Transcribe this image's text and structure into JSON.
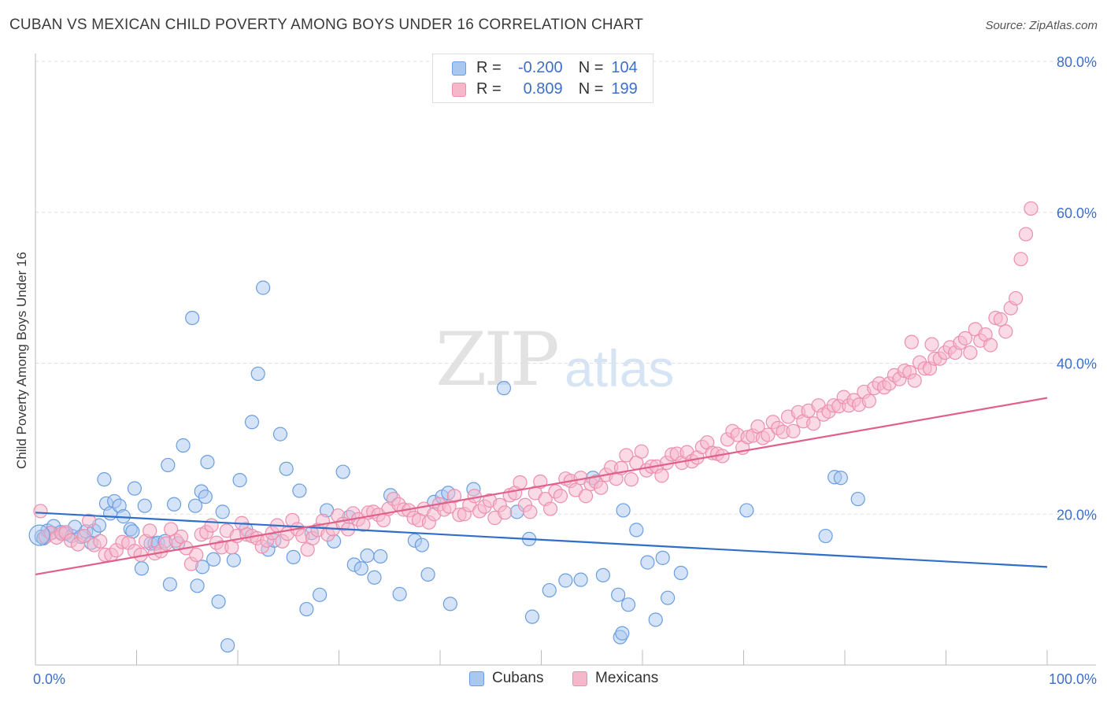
{
  "title": "CUBAN VS MEXICAN CHILD POVERTY AMONG BOYS UNDER 16 CORRELATION CHART",
  "source": "Source: ZipAtlas.com",
  "watermark": {
    "zip": "ZIP",
    "atlas": "atlas"
  },
  "legend_top": {
    "rows": [
      {
        "r_label": "R =",
        "r_value": "-0.200",
        "n_label": "N =",
        "n_value": "104"
      },
      {
        "r_label": "R =",
        "r_value": "0.809",
        "n_label": "N =",
        "n_value": "199"
      }
    ]
  },
  "legend_bottom": {
    "cubans": "Cubans",
    "mexicans": "Mexicans"
  },
  "colors": {
    "cubans_fill": "#a9c8ef",
    "cubans_stroke": "#6a9ee0",
    "cubans_line": "#2f6fca",
    "mexicans_fill": "#f5b8cb",
    "mexicans_stroke": "#ec8fad",
    "mexicans_line": "#e0608a",
    "tick_label": "#3d6fc9",
    "grid": "#dddddd"
  },
  "chart_data": {
    "type": "scatter",
    "title": "CUBAN VS MEXICAN CHILD POVERTY AMONG BOYS UNDER 16 CORRELATION CHART",
    "xlabel": "",
    "ylabel": "Child Poverty Among Boys Under 16",
    "xlim": [
      0,
      100
    ],
    "ylim": [
      0,
      80
    ],
    "x_tick_labels": [
      "0.0%",
      "100.0%"
    ],
    "y_ticks": [
      20,
      40,
      60,
      80
    ],
    "y_tick_labels": [
      "20.0%",
      "40.0%",
      "60.0%",
      "80.0%"
    ],
    "grid": "horizontal dashed",
    "legend_placement": "top-center",
    "series": [
      {
        "name": "Cubans",
        "R": -0.2,
        "N": 104,
        "trend": {
          "x": [
            0,
            100
          ],
          "y": [
            20.2,
            13.0
          ]
        },
        "points": [
          [
            0.6,
            17.0
          ],
          [
            0.8,
            16.8
          ],
          [
            1.2,
            17.8
          ],
          [
            1.6,
            17.5
          ],
          [
            1.8,
            18.4
          ],
          [
            2.5,
            17.6
          ],
          [
            3.0,
            17.4
          ],
          [
            3.6,
            17.1
          ],
          [
            3.9,
            18.3
          ],
          [
            4.5,
            17.0
          ],
          [
            5.0,
            17.7
          ],
          [
            5.5,
            16.2
          ],
          [
            5.8,
            17.8
          ],
          [
            6.3,
            18.5
          ],
          [
            7.0,
            21.4
          ],
          [
            6.8,
            24.6
          ],
          [
            7.4,
            20.1
          ],
          [
            7.8,
            21.7
          ],
          [
            8.3,
            21.1
          ],
          [
            8.7,
            19.7
          ],
          [
            9.4,
            18.0
          ],
          [
            9.6,
            17.7
          ],
          [
            9.8,
            23.4
          ],
          [
            10.5,
            12.8
          ],
          [
            10.8,
            21.1
          ],
          [
            11.4,
            16.1
          ],
          [
            11.8,
            16.1
          ],
          [
            12.1,
            16.2
          ],
          [
            12.8,
            16.4
          ],
          [
            13.1,
            26.5
          ],
          [
            13.3,
            10.7
          ],
          [
            13.7,
            21.3
          ],
          [
            14.1,
            16.1
          ],
          [
            14.6,
            29.1
          ],
          [
            15.8,
            21.1
          ],
          [
            16.4,
            23.0
          ],
          [
            16.8,
            22.3
          ],
          [
            15.5,
            46.0
          ],
          [
            16.0,
            10.5
          ],
          [
            16.5,
            13.0
          ],
          [
            17.0,
            26.9
          ],
          [
            17.6,
            14.0
          ],
          [
            18.1,
            8.4
          ],
          [
            18.5,
            20.3
          ],
          [
            19.0,
            2.6
          ],
          [
            19.6,
            13.9
          ],
          [
            20.2,
            24.5
          ],
          [
            20.8,
            18.0
          ],
          [
            21.4,
            32.2
          ],
          [
            22.0,
            38.6
          ],
          [
            22.5,
            50.0
          ],
          [
            23.0,
            15.3
          ],
          [
            23.6,
            16.5
          ],
          [
            24.2,
            30.6
          ],
          [
            24.8,
            26.0
          ],
          [
            25.5,
            14.3
          ],
          [
            26.1,
            23.1
          ],
          [
            26.8,
            7.4
          ],
          [
            27.3,
            17.5
          ],
          [
            28.1,
            9.3
          ],
          [
            28.8,
            20.5
          ],
          [
            29.5,
            16.4
          ],
          [
            30.4,
            25.6
          ],
          [
            31.0,
            19.6
          ],
          [
            31.5,
            13.3
          ],
          [
            32.2,
            12.8
          ],
          [
            32.8,
            14.5
          ],
          [
            33.5,
            11.6
          ],
          [
            34.1,
            14.4
          ],
          [
            35.1,
            22.5
          ],
          [
            36.0,
            9.4
          ],
          [
            37.5,
            16.5
          ],
          [
            38.2,
            15.9
          ],
          [
            38.8,
            12.0
          ],
          [
            39.4,
            21.6
          ],
          [
            40.2,
            22.3
          ],
          [
            40.8,
            22.8
          ],
          [
            41.0,
            8.1
          ],
          [
            43.3,
            23.3
          ],
          [
            46.3,
            36.7
          ],
          [
            47.6,
            20.3
          ],
          [
            48.8,
            16.7
          ],
          [
            49.1,
            6.4
          ],
          [
            50.8,
            9.9
          ],
          [
            52.4,
            11.2
          ],
          [
            53.9,
            11.3
          ],
          [
            55.1,
            24.8
          ],
          [
            56.1,
            11.9
          ],
          [
            57.6,
            9.3
          ],
          [
            57.8,
            3.7
          ],
          [
            58.0,
            4.2
          ],
          [
            58.1,
            20.5
          ],
          [
            58.6,
            8.0
          ],
          [
            59.4,
            17.9
          ],
          [
            60.5,
            13.6
          ],
          [
            61.3,
            6.0
          ],
          [
            62.0,
            14.2
          ],
          [
            62.5,
            8.9
          ],
          [
            63.8,
            12.2
          ],
          [
            70.3,
            20.5
          ],
          [
            79.0,
            24.9
          ],
          [
            79.6,
            24.8
          ],
          [
            81.3,
            22.0
          ],
          [
            78.1,
            17.1
          ]
        ]
      },
      {
        "name": "Mexicans",
        "R": 0.809,
        "N": 199,
        "trend": {
          "x": [
            0,
            100
          ],
          "y": [
            12.0,
            35.4
          ]
        },
        "points": [
          [
            0.5,
            20.4
          ],
          [
            1.0,
            17.0
          ],
          [
            1.5,
            17.5
          ],
          [
            2.1,
            16.9
          ],
          [
            2.6,
            17.4
          ],
          [
            3.0,
            17.6
          ],
          [
            3.5,
            16.5
          ],
          [
            4.2,
            16.0
          ],
          [
            4.8,
            17.1
          ],
          [
            5.3,
            19.1
          ],
          [
            5.8,
            15.9
          ],
          [
            6.4,
            16.4
          ],
          [
            6.9,
            14.6
          ],
          [
            7.5,
            14.6
          ],
          [
            8.0,
            15.2
          ],
          [
            8.6,
            16.3
          ],
          [
            9.2,
            16.2
          ],
          [
            9.8,
            15.1
          ],
          [
            10.4,
            14.6
          ],
          [
            10.9,
            16.4
          ],
          [
            11.3,
            17.8
          ],
          [
            11.8,
            14.8
          ],
          [
            12.4,
            15.1
          ],
          [
            12.9,
            16.1
          ],
          [
            13.4,
            18.0
          ],
          [
            13.9,
            16.5
          ],
          [
            14.4,
            17.0
          ],
          [
            14.9,
            15.5
          ],
          [
            15.4,
            13.4
          ],
          [
            15.9,
            14.6
          ],
          [
            16.4,
            17.3
          ],
          [
            16.9,
            17.6
          ],
          [
            17.4,
            18.5
          ],
          [
            17.9,
            16.2
          ],
          [
            18.4,
            15.6
          ],
          [
            18.9,
            17.8
          ],
          [
            19.4,
            15.6
          ],
          [
            19.9,
            17.1
          ],
          [
            20.4,
            18.8
          ],
          [
            20.9,
            17.3
          ],
          [
            21.4,
            17.1
          ],
          [
            21.9,
            16.8
          ],
          [
            22.4,
            15.7
          ],
          [
            22.9,
            16.5
          ],
          [
            23.4,
            17.5
          ],
          [
            23.9,
            18.5
          ],
          [
            24.4,
            16.4
          ],
          [
            24.9,
            17.4
          ],
          [
            25.4,
            19.2
          ],
          [
            25.9,
            18.0
          ],
          [
            26.4,
            17.1
          ],
          [
            26.9,
            15.3
          ],
          [
            27.4,
            16.8
          ],
          [
            27.9,
            17.9
          ],
          [
            28.4,
            19.1
          ],
          [
            28.9,
            17.3
          ],
          [
            29.4,
            18.0
          ],
          [
            29.9,
            19.8
          ],
          [
            30.4,
            18.7
          ],
          [
            30.9,
            18.0
          ],
          [
            31.4,
            20.1
          ],
          [
            31.9,
            19.3
          ],
          [
            32.4,
            18.6
          ],
          [
            32.9,
            20.2
          ],
          [
            33.4,
            20.3
          ],
          [
            33.9,
            19.9
          ],
          [
            34.4,
            19.2
          ],
          [
            34.9,
            20.7
          ],
          [
            35.4,
            22.0
          ],
          [
            35.9,
            21.3
          ],
          [
            36.4,
            20.6
          ],
          [
            36.9,
            20.5
          ],
          [
            37.4,
            19.5
          ],
          [
            37.9,
            19.2
          ],
          [
            38.4,
            20.7
          ],
          [
            38.9,
            18.9
          ],
          [
            39.4,
            20.0
          ],
          [
            39.9,
            21.3
          ],
          [
            40.4,
            20.6
          ],
          [
            40.9,
            21.0
          ],
          [
            41.4,
            22.4
          ],
          [
            41.9,
            19.9
          ],
          [
            42.4,
            20.0
          ],
          [
            42.9,
            21.2
          ],
          [
            43.4,
            22.4
          ],
          [
            43.9,
            20.4
          ],
          [
            44.4,
            21.0
          ],
          [
            44.9,
            21.8
          ],
          [
            45.4,
            19.5
          ],
          [
            45.9,
            21.2
          ],
          [
            46.4,
            20.2
          ],
          [
            46.9,
            22.5
          ],
          [
            47.4,
            22.8
          ],
          [
            47.9,
            24.2
          ],
          [
            48.4,
            21.2
          ],
          [
            48.9,
            20.3
          ],
          [
            49.4,
            22.8
          ],
          [
            49.9,
            24.3
          ],
          [
            50.4,
            22.0
          ],
          [
            50.9,
            20.7
          ],
          [
            51.4,
            23.0
          ],
          [
            51.9,
            22.4
          ],
          [
            52.4,
            24.7
          ],
          [
            52.9,
            24.4
          ],
          [
            53.4,
            23.2
          ],
          [
            53.9,
            24.8
          ],
          [
            54.4,
            22.4
          ],
          [
            54.9,
            24.0
          ],
          [
            55.4,
            24.3
          ],
          [
            55.9,
            23.5
          ],
          [
            56.4,
            25.2
          ],
          [
            56.9,
            26.2
          ],
          [
            57.4,
            24.7
          ],
          [
            57.9,
            26.1
          ],
          [
            58.4,
            27.8
          ],
          [
            58.9,
            24.6
          ],
          [
            59.4,
            26.8
          ],
          [
            59.9,
            28.3
          ],
          [
            60.4,
            25.8
          ],
          [
            60.9,
            26.3
          ],
          [
            61.4,
            26.3
          ],
          [
            61.9,
            25.1
          ],
          [
            62.4,
            26.8
          ],
          [
            62.9,
            27.9
          ],
          [
            63.4,
            28.0
          ],
          [
            63.9,
            26.8
          ],
          [
            64.4,
            28.2
          ],
          [
            64.9,
            27.0
          ],
          [
            65.4,
            27.5
          ],
          [
            65.9,
            28.9
          ],
          [
            66.4,
            29.5
          ],
          [
            66.9,
            28.1
          ],
          [
            67.4,
            28.0
          ],
          [
            67.9,
            27.7
          ],
          [
            68.4,
            29.9
          ],
          [
            68.9,
            31.0
          ],
          [
            69.4,
            30.5
          ],
          [
            69.9,
            28.8
          ],
          [
            70.4,
            30.2
          ],
          [
            70.9,
            30.4
          ],
          [
            71.4,
            31.6
          ],
          [
            71.9,
            30.1
          ],
          [
            72.4,
            30.5
          ],
          [
            72.9,
            32.2
          ],
          [
            73.4,
            31.4
          ],
          [
            73.9,
            30.9
          ],
          [
            74.4,
            32.9
          ],
          [
            74.9,
            31.0
          ],
          [
            75.4,
            33.5
          ],
          [
            75.9,
            32.3
          ],
          [
            76.4,
            33.7
          ],
          [
            76.9,
            32.0
          ],
          [
            77.4,
            34.4
          ],
          [
            77.9,
            33.2
          ],
          [
            78.4,
            33.6
          ],
          [
            78.9,
            34.4
          ],
          [
            79.4,
            34.3
          ],
          [
            79.9,
            35.5
          ],
          [
            80.4,
            34.4
          ],
          [
            80.9,
            35.1
          ],
          [
            81.4,
            34.5
          ],
          [
            81.9,
            36.2
          ],
          [
            82.4,
            35.0
          ],
          [
            82.9,
            36.7
          ],
          [
            83.4,
            37.3
          ],
          [
            83.9,
            36.8
          ],
          [
            84.4,
            37.3
          ],
          [
            84.9,
            38.4
          ],
          [
            85.4,
            37.9
          ],
          [
            85.9,
            39.0
          ],
          [
            86.4,
            38.8
          ],
          [
            86.9,
            37.7
          ],
          [
            87.4,
            40.1
          ],
          [
            87.9,
            39.3
          ],
          [
            88.4,
            39.3
          ],
          [
            88.9,
            40.6
          ],
          [
            89.4,
            40.6
          ],
          [
            89.9,
            41.4
          ],
          [
            90.4,
            42.1
          ],
          [
            90.9,
            41.4
          ],
          [
            91.4,
            42.7
          ],
          [
            91.9,
            43.3
          ],
          [
            92.4,
            41.4
          ],
          [
            92.9,
            44.5
          ],
          [
            93.4,
            43.0
          ],
          [
            93.9,
            43.8
          ],
          [
            94.4,
            42.4
          ],
          [
            94.9,
            46.0
          ],
          [
            95.4,
            45.8
          ],
          [
            95.9,
            44.2
          ],
          [
            96.4,
            47.3
          ],
          [
            96.9,
            48.6
          ],
          [
            97.4,
            53.8
          ],
          [
            97.9,
            57.1
          ],
          [
            98.4,
            60.5
          ],
          [
            88.6,
            42.5
          ],
          [
            86.6,
            42.8
          ]
        ]
      }
    ]
  }
}
